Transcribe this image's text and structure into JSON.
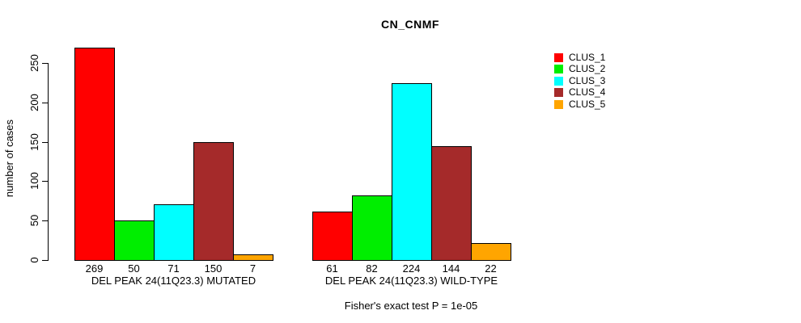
{
  "chart_data": {
    "type": "bar",
    "title": "CN_CNMF",
    "ylabel": "number of cases",
    "xlabel": "",
    "ylim": [
      0,
      250
    ],
    "yticks": [
      0,
      50,
      100,
      150,
      200,
      250
    ],
    "grid": false,
    "legend_position": "right",
    "bar_borders": "black",
    "categories": [
      "DEL PEAK 24(11Q23.3) MUTATED",
      "DEL PEAK 24(11Q23.3) WILD-TYPE"
    ],
    "series": [
      {
        "name": "CLUS_1",
        "color": "#ff0000",
        "values": [
          269,
          61
        ]
      },
      {
        "name": "CLUS_2",
        "color": "#00ee00",
        "values": [
          50,
          82
        ]
      },
      {
        "name": "CLUS_3",
        "color": "#00ffff",
        "values": [
          71,
          224
        ]
      },
      {
        "name": "CLUS_4",
        "color": "#a52a2a",
        "values": [
          150,
          144
        ]
      },
      {
        "name": "CLUS_5",
        "color": "#ffa500",
        "values": [
          7,
          22
        ]
      }
    ],
    "bar_value_labels": {
      "DEL PEAK 24(11Q23.3) MUTATED": [
        269,
        50,
        71,
        150,
        7
      ],
      "DEL PEAK 24(11Q23.3) WILD-TYPE": [
        61,
        82,
        224,
        144,
        22
      ]
    },
    "annotation": "Fisher's exact test P = 1e-05"
  }
}
